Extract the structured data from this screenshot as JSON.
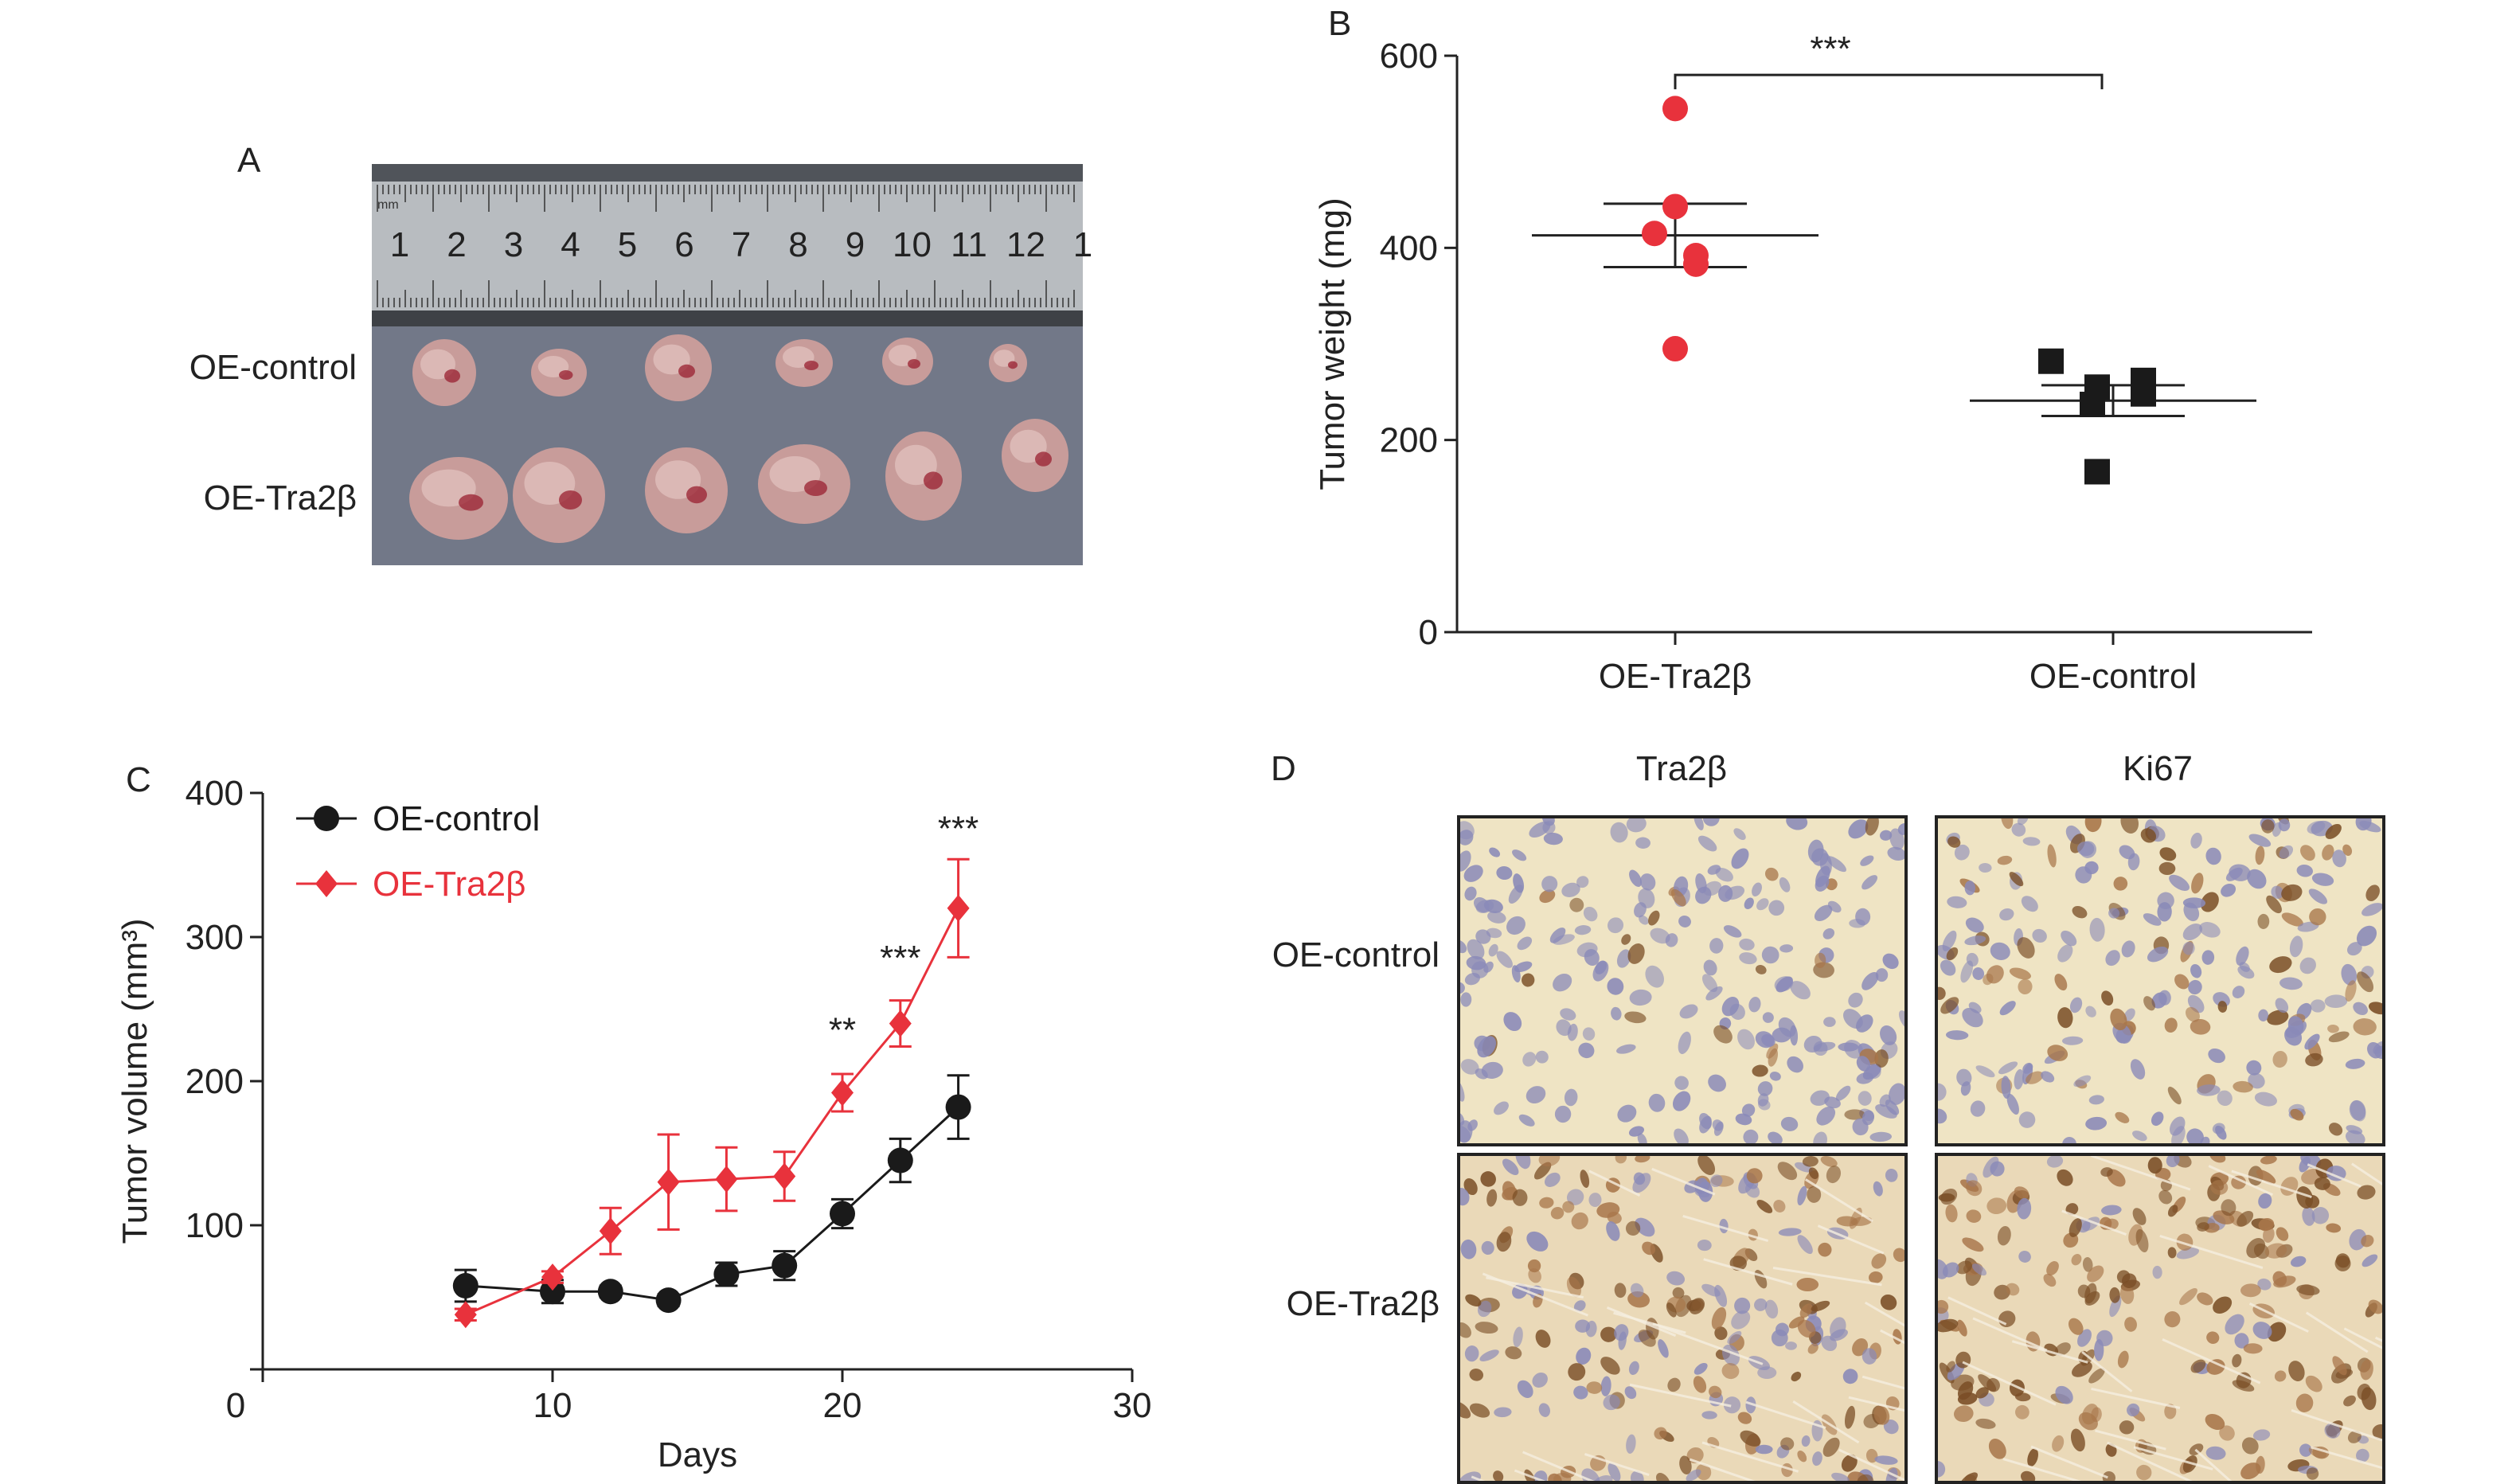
{
  "figure": {
    "panel_letters": {
      "a": "A",
      "b": "B",
      "c": "C",
      "d": "D"
    }
  },
  "panel_a": {
    "row_labels": [
      "OE-control",
      "OE-Tra2β"
    ],
    "ruler_numbers": [
      "1",
      "2",
      "3",
      "4",
      "5",
      "6",
      "7",
      "8",
      "9",
      "10",
      "11",
      "12",
      "1"
    ],
    "ruler_unit": "mm",
    "colors": {
      "background": "#6a6e7e",
      "ruler": "#b8bcc0",
      "tumor": "#c89c9a",
      "blood": "#9a2030"
    }
  },
  "panel_d": {
    "column_labels": [
      "Tra2β",
      "Ki67"
    ],
    "row_labels": [
      "OE-control",
      "OE-Tra2β"
    ],
    "colors": {
      "control_bg": "#efe4c4",
      "tra2b_bg": "#ead9b8",
      "hematoxylin": "#8a8ab8",
      "dab": "#7a4e26"
    }
  },
  "chart_data": [
    {
      "id": "B",
      "type": "scatter",
      "title": "",
      "xlabel": "",
      "ylabel": "Tumor weight (mg)",
      "categories": [
        "OE-Tra2β",
        "OE-control"
      ],
      "ylim": [
        0,
        600
      ],
      "yticks": [
        "0",
        "200",
        "400",
        "600"
      ],
      "series": [
        {
          "name": "OE-Tra2β",
          "color": "#e8323c",
          "marker": "circle",
          "values": [
            545,
            443,
            415,
            392,
            383,
            295
          ],
          "mean": 413,
          "sem_upper": 446,
          "sem_lower": 380
        },
        {
          "name": "OE-control",
          "color": "#1a1a1a",
          "marker": "square",
          "values": [
            282,
            262,
            255,
            248,
            237,
            167
          ],
          "mean": 241,
          "sem_upper": 257,
          "sem_lower": 225
        }
      ],
      "annotations": [
        {
          "label": "***",
          "between": [
            "OE-Tra2β",
            "OE-control"
          ],
          "y": 590
        }
      ],
      "grid": false
    },
    {
      "id": "C",
      "type": "line",
      "title": "",
      "xlabel": "Days",
      "ylabel": "Tumor volume (mm³)",
      "xlim": [
        0,
        30
      ],
      "ylim": [
        0,
        400
      ],
      "xticks": [
        "0",
        "10",
        "20",
        "30"
      ],
      "yticks": [
        "100",
        "200",
        "300",
        "400"
      ],
      "legend": "top-left",
      "series": [
        {
          "name": "OE-control",
          "color": "#1a1a1a",
          "marker": "circle",
          "x": [
            7,
            10,
            12,
            14,
            16,
            18,
            20,
            22,
            24
          ],
          "values": [
            58,
            54,
            54,
            48,
            66,
            72,
            108,
            145,
            182
          ],
          "error": [
            11,
            8,
            4,
            4,
            8,
            10,
            10,
            15,
            22
          ]
        },
        {
          "name": "OE-Tra2β",
          "color": "#e8323c",
          "marker": "diamond",
          "x": [
            7,
            10,
            12,
            14,
            16,
            18,
            20,
            22,
            24
          ],
          "values": [
            38,
            64,
            96,
            130,
            132,
            134,
            192,
            240,
            320
          ],
          "error": [
            4,
            4,
            16,
            33,
            22,
            17,
            13,
            16,
            34
          ]
        }
      ],
      "annotations": [
        {
          "label": "**",
          "x": 20,
          "y": 235
        },
        {
          "label": "***",
          "x": 22,
          "y": 285
        },
        {
          "label": "***",
          "x": 24,
          "y": 375
        }
      ],
      "grid": false
    }
  ]
}
